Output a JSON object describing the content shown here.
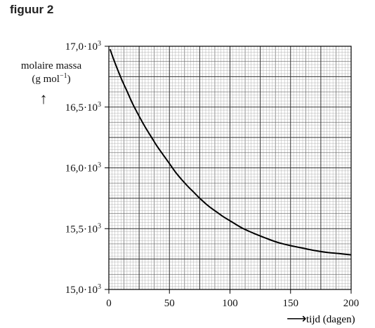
{
  "figure_title": "figuur 2",
  "chart_data": {
    "type": "line",
    "ylabel_line1": "molaire massa",
    "ylabel_unit_base": "(g mol",
    "ylabel_unit_exp": "−1",
    "ylabel_unit_close": ")",
    "ylabel_arrow": "↑",
    "xlabel": "tijd (dagen)",
    "xlabel_arrow": "⟶",
    "xlim": [
      0,
      200
    ],
    "ylim": [
      15000,
      17000
    ],
    "x_ticks": [
      {
        "value": 0,
        "label": "0"
      },
      {
        "value": 50,
        "label": "50"
      },
      {
        "value": 100,
        "label": "100"
      },
      {
        "value": 150,
        "label": "150"
      },
      {
        "value": 200,
        "label": "200"
      }
    ],
    "y_ticks": [
      {
        "value": 15000,
        "mantissa": "15,0·10",
        "exp": "3"
      },
      {
        "value": 15500,
        "mantissa": "15,5·10",
        "exp": "3"
      },
      {
        "value": 16000,
        "mantissa": "16,0·10",
        "exp": "3"
      },
      {
        "value": 16500,
        "mantissa": "16,5·10",
        "exp": "3"
      },
      {
        "value": 17000,
        "mantissa": "17,0·10",
        "exp": "3"
      }
    ],
    "grid": true,
    "series": [
      {
        "color": "#000000",
        "x": [
          1,
          5,
          10,
          15,
          20,
          25,
          30,
          35,
          40,
          45,
          50,
          55,
          60,
          65,
          70,
          75,
          80,
          85,
          90,
          95,
          100,
          110,
          120,
          130,
          140,
          150,
          160,
          170,
          180,
          190,
          200
        ],
        "y": [
          16975,
          16865,
          16740,
          16630,
          16520,
          16425,
          16335,
          16255,
          16175,
          16105,
          16035,
          15965,
          15905,
          15850,
          15800,
          15750,
          15705,
          15665,
          15630,
          15595,
          15565,
          15505,
          15460,
          15420,
          15385,
          15360,
          15340,
          15320,
          15305,
          15295,
          15285
        ]
      }
    ]
  }
}
